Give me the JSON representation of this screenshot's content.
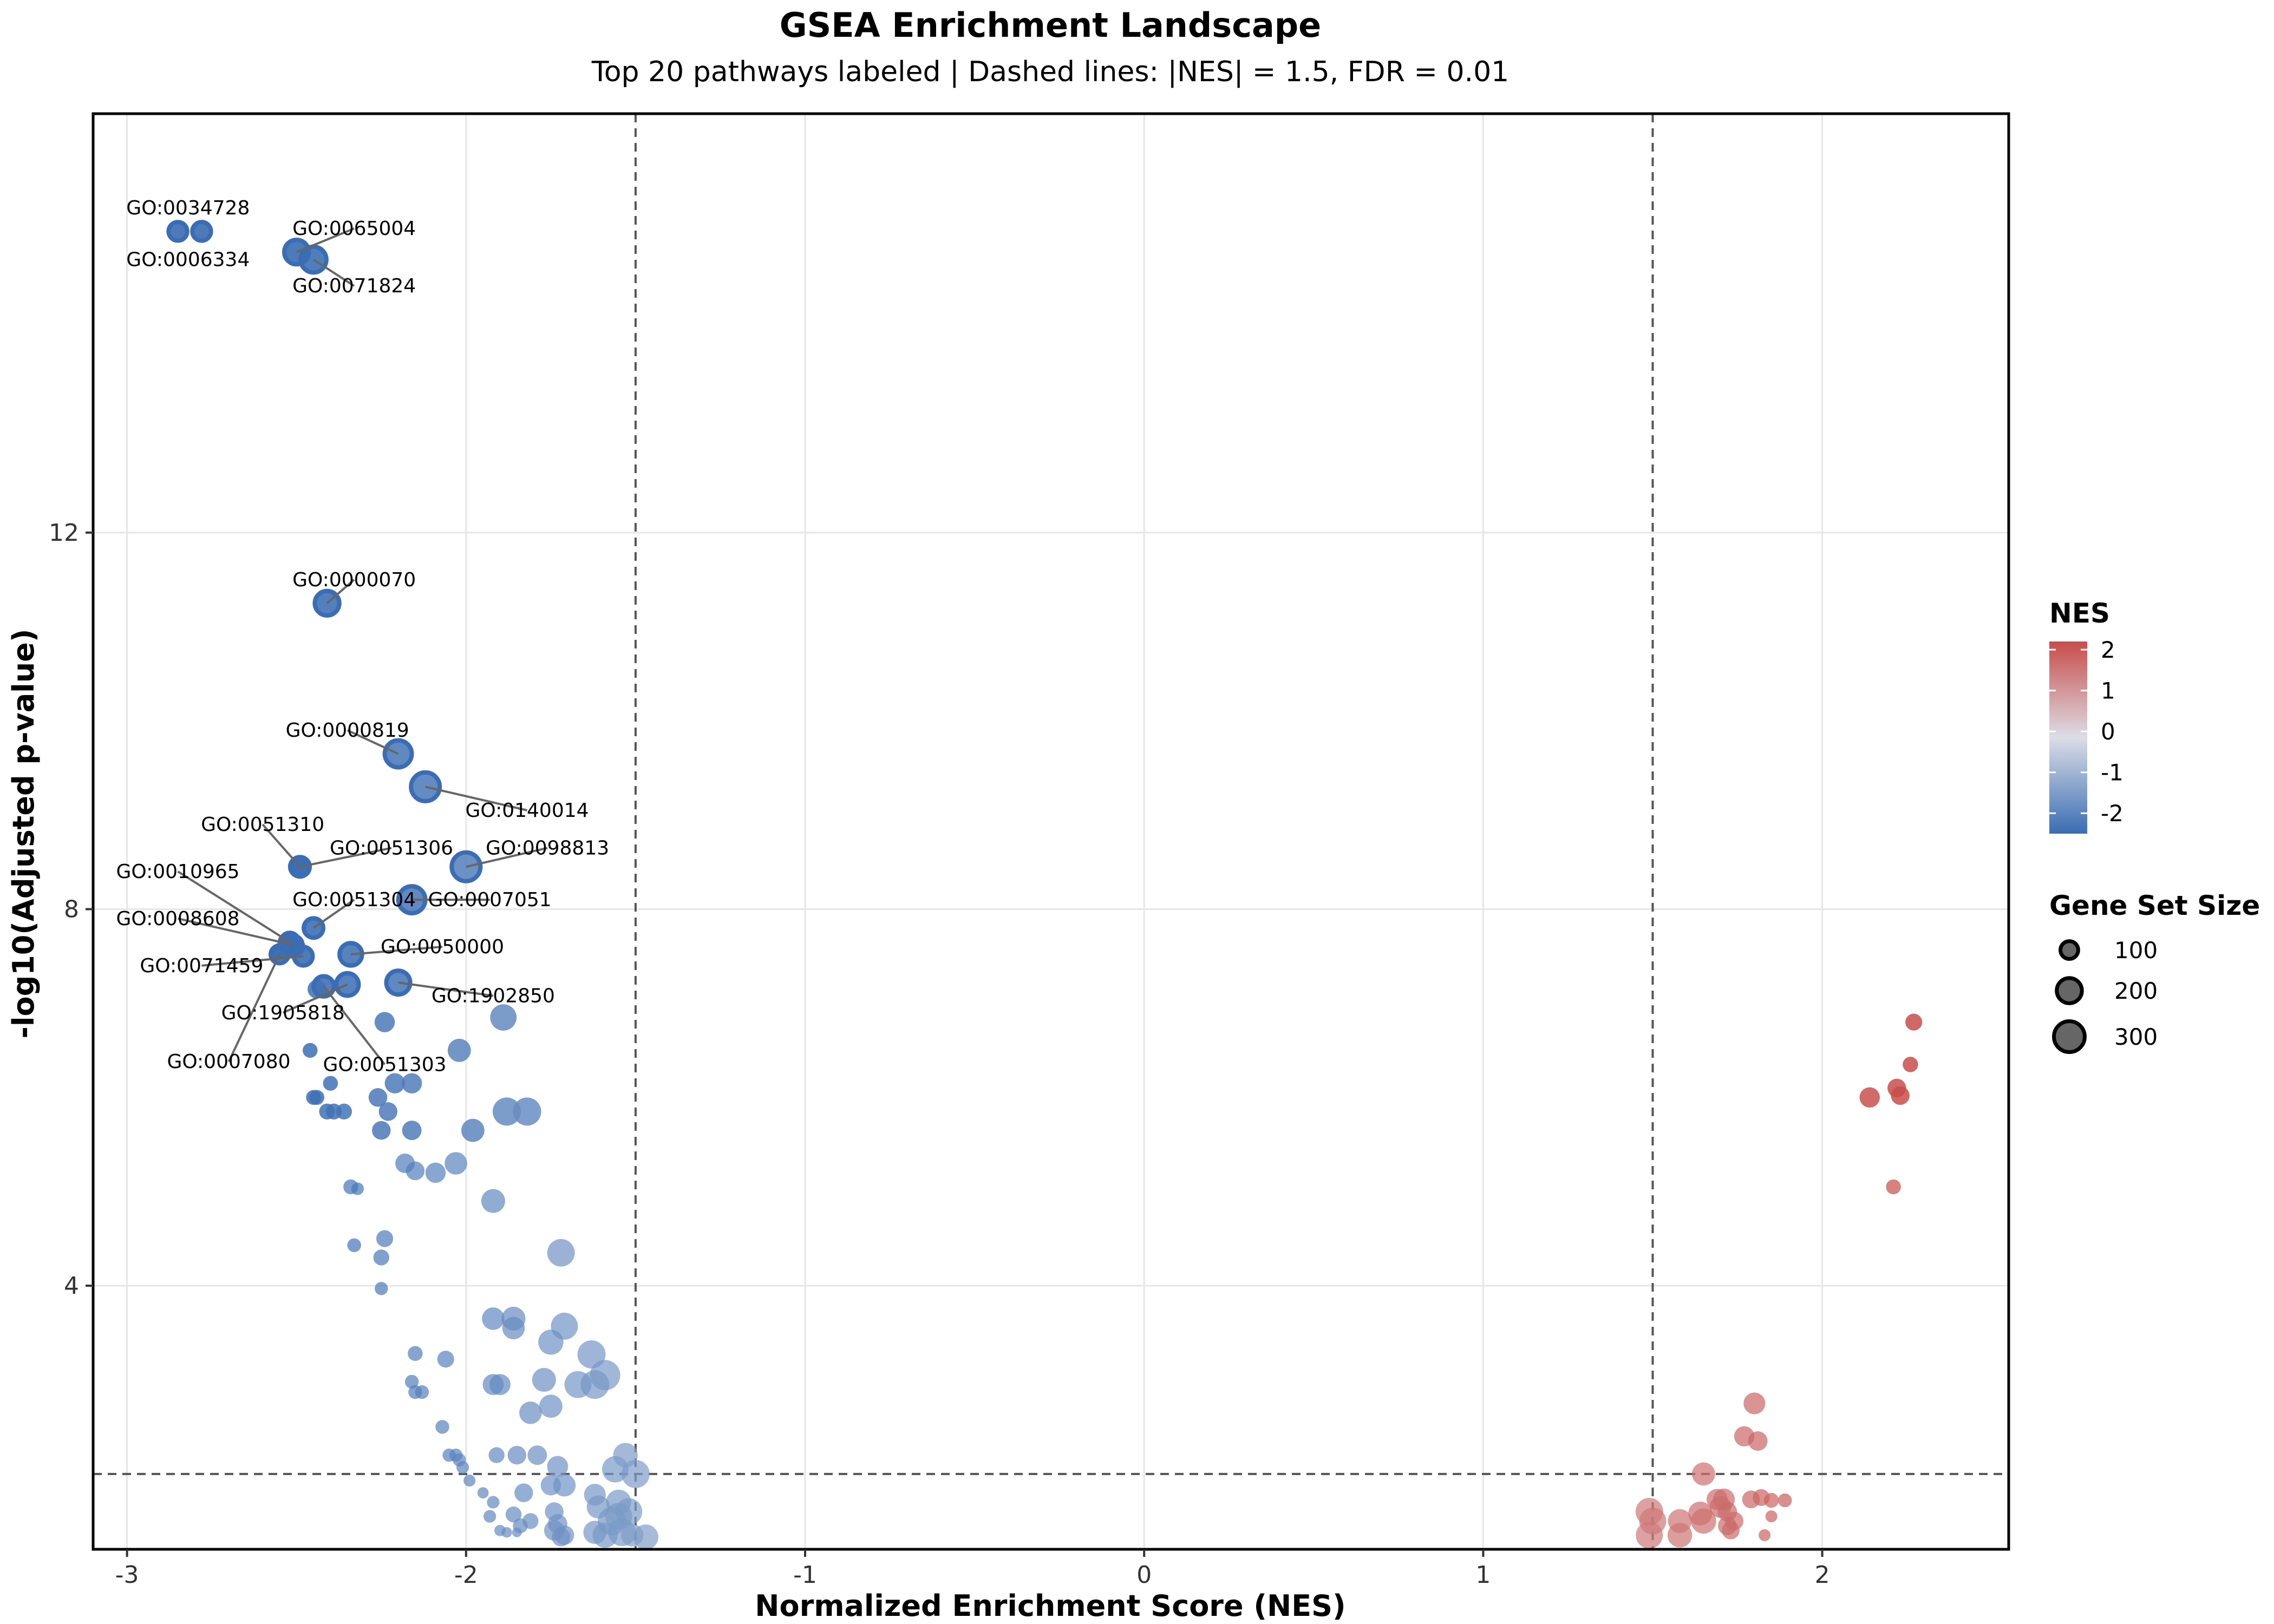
{
  "chart_data": {
    "type": "scatter",
    "title": "GSEA Enrichment Landscape",
    "subtitle": "Top 20 pathways labeled | Dashed lines: |NES| = 1.5, FDR = 0.01",
    "xlabel": "Normalized Enrichment Score (NES)",
    "ylabel": "-log10(Adjusted p-value)",
    "xlim": [
      -3.1,
      2.55
    ],
    "ylim": [
      1.2,
      16.45
    ],
    "x_ticks": [
      -3,
      -2,
      -1,
      0,
      1,
      2
    ],
    "x_tick_labels": [
      "-3",
      "-2",
      "-1",
      "0",
      "1",
      "2"
    ],
    "y_ticks": [
      4,
      8,
      12
    ],
    "y_tick_labels": [
      "4",
      "8",
      "12"
    ],
    "grid": true,
    "reference_lines": {
      "vertical_nes": [
        -1.5,
        1.5
      ],
      "horizontal_log10": 2.0
    },
    "color_scale": {
      "title": "NES",
      "low_color": "#3a6db3",
      "mid_color": "#dcdde6",
      "high_color": "#c84d4a",
      "range": [
        -2.5,
        2.2
      ],
      "ticks": [
        2,
        1,
        0,
        -1,
        -2
      ],
      "tick_labels": [
        "2",
        "1",
        "0",
        "-1",
        "-2"
      ]
    },
    "size_legend": {
      "title": "Gene Set Size",
      "values": [
        100,
        200,
        300
      ],
      "labels": [
        "100",
        "200",
        "300"
      ]
    },
    "labeled_points": [
      {
        "label": "GO:0034728",
        "nes": -2.78,
        "log10p": 15.2,
        "size": 110,
        "lx": -2.82,
        "ly": 15.45
      },
      {
        "label": "GO:0006334",
        "nes": -2.85,
        "log10p": 15.2,
        "size": 110,
        "lx": -2.82,
        "ly": 14.9
      },
      {
        "label": "GO:0065004",
        "nes": -2.5,
        "log10p": 14.98,
        "size": 190,
        "lx": -2.33,
        "ly": 15.23
      },
      {
        "label": "GO:0071824",
        "nes": -2.45,
        "log10p": 14.9,
        "size": 210,
        "lx": -2.33,
        "ly": 14.62
      },
      {
        "label": "GO:0000070",
        "nes": -2.41,
        "log10p": 11.25,
        "size": 190,
        "lx": -2.33,
        "ly": 11.5
      },
      {
        "label": "GO:0000819",
        "nes": -2.2,
        "log10p": 9.65,
        "size": 230,
        "lx": -2.35,
        "ly": 9.9
      },
      {
        "label": "GO:0140014",
        "nes": -2.12,
        "log10p": 9.3,
        "size": 260,
        "lx": -1.82,
        "ly": 9.05
      },
      {
        "label": "GO:0051310",
        "nes": -2.49,
        "log10p": 8.45,
        "size": 120,
        "lx": -2.6,
        "ly": 8.9
      },
      {
        "label": "GO:0051306",
        "nes": -2.49,
        "log10p": 8.45,
        "size": 120,
        "lx": -2.22,
        "ly": 8.65
      },
      {
        "label": "GO:0098813",
        "nes": -2.0,
        "log10p": 8.45,
        "size": 260,
        "lx": -1.76,
        "ly": 8.65
      },
      {
        "label": "GO:0010965",
        "nes": -2.52,
        "log10p": 7.65,
        "size": 110,
        "lx": -2.85,
        "ly": 8.4
      },
      {
        "label": "GO:0051304",
        "nes": -2.45,
        "log10p": 7.8,
        "size": 120,
        "lx": -2.33,
        "ly": 8.1
      },
      {
        "label": "GO:0007051",
        "nes": -2.16,
        "log10p": 8.1,
        "size": 230,
        "lx": -1.93,
        "ly": 8.1
      },
      {
        "label": "GO:0008608",
        "nes": -2.51,
        "log10p": 7.62,
        "size": 110,
        "lx": -2.85,
        "ly": 7.9
      },
      {
        "label": "GO:0050000",
        "nes": -2.34,
        "log10p": 7.52,
        "size": 160,
        "lx": -2.07,
        "ly": 7.6
      },
      {
        "label": "GO:0071459",
        "nes": -2.48,
        "log10p": 7.5,
        "size": 110,
        "lx": -2.78,
        "ly": 7.4
      },
      {
        "label": "GO:1905818",
        "nes": -2.35,
        "log10p": 7.2,
        "size": 160,
        "lx": -2.54,
        "ly": 6.9
      },
      {
        "label": "GO:1902850",
        "nes": -2.2,
        "log10p": 7.22,
        "size": 180,
        "lx": -1.92,
        "ly": 7.08
      },
      {
        "label": "GO:0007080",
        "nes": -2.55,
        "log10p": 7.52,
        "size": 100,
        "lx": -2.7,
        "ly": 6.38
      },
      {
        "label": "GO:0051303",
        "nes": -2.42,
        "log10p": 7.18,
        "size": 130,
        "lx": -2.24,
        "ly": 6.35
      }
    ],
    "unlabeled_points": [
      {
        "nes": -2.53,
        "log10p": 7.65,
        "size": 100
      },
      {
        "nes": -2.5,
        "log10p": 7.6,
        "size": 100
      },
      {
        "nes": -2.55,
        "log10p": 7.55,
        "size": 90
      },
      {
        "nes": -2.44,
        "log10p": 7.15,
        "size": 110
      },
      {
        "nes": -2.24,
        "log10p": 6.8,
        "size": 130
      },
      {
        "nes": -1.89,
        "log10p": 6.85,
        "size": 220
      },
      {
        "nes": -2.02,
        "log10p": 6.5,
        "size": 170
      },
      {
        "nes": -2.46,
        "log10p": 6.5,
        "size": 70
      },
      {
        "nes": -2.21,
        "log10p": 6.15,
        "size": 130
      },
      {
        "nes": -2.16,
        "log10p": 6.15,
        "size": 130
      },
      {
        "nes": -2.4,
        "log10p": 6.15,
        "size": 70
      },
      {
        "nes": -2.45,
        "log10p": 6.0,
        "size": 70
      },
      {
        "nes": -2.44,
        "log10p": 6.0,
        "size": 70
      },
      {
        "nes": -2.26,
        "log10p": 6.0,
        "size": 110
      },
      {
        "nes": -2.23,
        "log10p": 5.85,
        "size": 110
      },
      {
        "nes": -2.41,
        "log10p": 5.85,
        "size": 80
      },
      {
        "nes": -2.39,
        "log10p": 5.85,
        "size": 80
      },
      {
        "nes": -2.36,
        "log10p": 5.85,
        "size": 80
      },
      {
        "nes": -1.88,
        "log10p": 5.85,
        "size": 250
      },
      {
        "nes": -1.82,
        "log10p": 5.85,
        "size": 250
      },
      {
        "nes": -2.25,
        "log10p": 5.65,
        "size": 110
      },
      {
        "nes": -2.16,
        "log10p": 5.65,
        "size": 120
      },
      {
        "nes": -1.98,
        "log10p": 5.65,
        "size": 170
      },
      {
        "nes": -2.18,
        "log10p": 5.3,
        "size": 120
      },
      {
        "nes": -2.15,
        "log10p": 5.22,
        "size": 110
      },
      {
        "nes": -2.09,
        "log10p": 5.2,
        "size": 130
      },
      {
        "nes": -2.03,
        "log10p": 5.3,
        "size": 160
      },
      {
        "nes": -2.34,
        "log10p": 5.05,
        "size": 70
      },
      {
        "nes": -2.32,
        "log10p": 5.03,
        "size": 50
      },
      {
        "nes": -1.92,
        "log10p": 4.9,
        "size": 180
      },
      {
        "nes": -2.24,
        "log10p": 4.5,
        "size": 90
      },
      {
        "nes": -2.33,
        "log10p": 4.43,
        "size": 60
      },
      {
        "nes": -2.25,
        "log10p": 4.3,
        "size": 80
      },
      {
        "nes": -1.72,
        "log10p": 4.35,
        "size": 240
      },
      {
        "nes": -2.25,
        "log10p": 3.97,
        "size": 55
      },
      {
        "nes": -1.92,
        "log10p": 3.65,
        "size": 160
      },
      {
        "nes": -1.86,
        "log10p": 3.65,
        "size": 180
      },
      {
        "nes": -1.71,
        "log10p": 3.57,
        "size": 230
      },
      {
        "nes": -1.86,
        "log10p": 3.55,
        "size": 160
      },
      {
        "nes": -1.75,
        "log10p": 3.4,
        "size": 200
      },
      {
        "nes": -1.63,
        "log10p": 3.27,
        "size": 250
      },
      {
        "nes": -1.59,
        "log10p": 3.05,
        "size": 290
      },
      {
        "nes": -2.15,
        "log10p": 3.28,
        "size": 70
      },
      {
        "nes": -2.06,
        "log10p": 3.22,
        "size": 90
      },
      {
        "nes": -1.77,
        "log10p": 3.0,
        "size": 180
      },
      {
        "nes": -1.67,
        "log10p": 2.95,
        "size": 230
      },
      {
        "nes": -1.62,
        "log10p": 2.95,
        "size": 260
      },
      {
        "nes": -1.92,
        "log10p": 2.95,
        "size": 140
      },
      {
        "nes": -1.9,
        "log10p": 2.95,
        "size": 140
      },
      {
        "nes": -2.16,
        "log10p": 2.98,
        "size": 60
      },
      {
        "nes": -2.15,
        "log10p": 2.87,
        "size": 60
      },
      {
        "nes": -2.13,
        "log10p": 2.87,
        "size": 60
      },
      {
        "nes": -1.81,
        "log10p": 2.65,
        "size": 160
      },
      {
        "nes": -1.75,
        "log10p": 2.72,
        "size": 170
      },
      {
        "nes": -2.07,
        "log10p": 2.5,
        "size": 60
      },
      {
        "nes": -1.53,
        "log10p": 2.2,
        "size": 190
      },
      {
        "nes": -2.05,
        "log10p": 2.2,
        "size": 55
      },
      {
        "nes": -2.03,
        "log10p": 2.2,
        "size": 55
      },
      {
        "nes": -2.02,
        "log10p": 2.15,
        "size": 55
      },
      {
        "nes": -1.91,
        "log10p": 2.2,
        "size": 80
      },
      {
        "nes": -1.85,
        "log10p": 2.2,
        "size": 110
      },
      {
        "nes": -1.79,
        "log10p": 2.2,
        "size": 120
      },
      {
        "nes": -1.73,
        "log10p": 2.08,
        "size": 140
      },
      {
        "nes": -1.56,
        "log10p": 2.05,
        "size": 220
      },
      {
        "nes": -1.5,
        "log10p": 2.0,
        "size": 250
      },
      {
        "nes": -2.01,
        "log10p": 2.07,
        "size": 50
      },
      {
        "nes": -1.99,
        "log10p": 1.93,
        "size": 45
      },
      {
        "nes": -1.95,
        "log10p": 1.8,
        "size": 40
      },
      {
        "nes": -1.92,
        "log10p": 1.7,
        "size": 50
      },
      {
        "nes": -1.83,
        "log10p": 1.8,
        "size": 110
      },
      {
        "nes": -1.75,
        "log10p": 1.88,
        "size": 130
      },
      {
        "nes": -1.71,
        "log10p": 1.88,
        "size": 160
      },
      {
        "nes": -1.62,
        "log10p": 1.78,
        "size": 150
      },
      {
        "nes": -1.61,
        "log10p": 1.65,
        "size": 170
      },
      {
        "nes": -1.55,
        "log10p": 1.7,
        "size": 200
      },
      {
        "nes": -1.52,
        "log10p": 1.6,
        "size": 230
      },
      {
        "nes": -1.55,
        "log10p": 1.55,
        "size": 230
      },
      {
        "nes": -1.57,
        "log10p": 1.5,
        "size": 250
      },
      {
        "nes": -1.59,
        "log10p": 1.35,
        "size": 200
      },
      {
        "nes": -1.62,
        "log10p": 1.38,
        "size": 170
      },
      {
        "nes": -1.54,
        "log10p": 1.38,
        "size": 240
      },
      {
        "nes": -1.47,
        "log10p": 1.33,
        "size": 200
      },
      {
        "nes": -1.51,
        "log10p": 1.35,
        "size": 160
      },
      {
        "nes": -1.86,
        "log10p": 1.57,
        "size": 80
      },
      {
        "nes": -1.84,
        "log10p": 1.45,
        "size": 70
      },
      {
        "nes": -1.81,
        "log10p": 1.5,
        "size": 80
      },
      {
        "nes": -1.74,
        "log10p": 1.6,
        "size": 110
      },
      {
        "nes": -1.73,
        "log10p": 1.47,
        "size": 120
      },
      {
        "nes": -1.74,
        "log10p": 1.4,
        "size": 130
      },
      {
        "nes": -1.71,
        "log10p": 1.35,
        "size": 120
      },
      {
        "nes": -1.72,
        "log10p": 1.33,
        "size": 110
      },
      {
        "nes": -1.9,
        "log10p": 1.4,
        "size": 40
      },
      {
        "nes": -1.88,
        "log10p": 1.38,
        "size": 35
      },
      {
        "nes": -1.85,
        "log10p": 1.38,
        "size": 30
      },
      {
        "nes": -1.93,
        "log10p": 1.55,
        "size": 50
      },
      {
        "nes": 2.27,
        "log10p": 6.8,
        "size": 90
      },
      {
        "nes": 2.26,
        "log10p": 6.35,
        "size": 75
      },
      {
        "nes": 2.14,
        "log10p": 6.0,
        "size": 130
      },
      {
        "nes": 2.22,
        "log10p": 6.1,
        "size": 110
      },
      {
        "nes": 2.23,
        "log10p": 6.02,
        "size": 110
      },
      {
        "nes": 2.21,
        "log10p": 5.05,
        "size": 70
      },
      {
        "nes": 1.8,
        "log10p": 2.75,
        "size": 150
      },
      {
        "nes": 1.77,
        "log10p": 2.4,
        "size": 130
      },
      {
        "nes": 1.81,
        "log10p": 2.35,
        "size": 120
      },
      {
        "nes": 1.65,
        "log10p": 2.0,
        "size": 170
      },
      {
        "nes": 1.49,
        "log10p": 1.6,
        "size": 240
      },
      {
        "nes": 1.5,
        "log10p": 1.5,
        "size": 230
      },
      {
        "nes": 1.49,
        "log10p": 1.35,
        "size": 230
      },
      {
        "nes": 1.58,
        "log10p": 1.5,
        "size": 180
      },
      {
        "nes": 1.58,
        "log10p": 1.35,
        "size": 190
      },
      {
        "nes": 1.65,
        "log10p": 1.5,
        "size": 200
      },
      {
        "nes": 1.64,
        "log10p": 1.58,
        "size": 180
      },
      {
        "nes": 1.71,
        "log10p": 1.73,
        "size": 150
      },
      {
        "nes": 1.7,
        "log10p": 1.65,
        "size": 150
      },
      {
        "nes": 1.69,
        "log10p": 1.73,
        "size": 140
      },
      {
        "nes": 1.72,
        "log10p": 1.6,
        "size": 120
      },
      {
        "nes": 1.74,
        "log10p": 1.5,
        "size": 110
      },
      {
        "nes": 1.73,
        "log10p": 1.4,
        "size": 100
      },
      {
        "nes": 1.72,
        "log10p": 1.45,
        "size": 110
      },
      {
        "nes": 1.79,
        "log10p": 1.73,
        "size": 100
      },
      {
        "nes": 1.82,
        "log10p": 1.75,
        "size": 90
      },
      {
        "nes": 1.85,
        "log10p": 1.72,
        "size": 70
      },
      {
        "nes": 1.89,
        "log10p": 1.72,
        "size": 60
      },
      {
        "nes": 1.85,
        "log10p": 1.55,
        "size": 45
      },
      {
        "nes": 1.83,
        "log10p": 1.35,
        "size": 45
      }
    ]
  }
}
